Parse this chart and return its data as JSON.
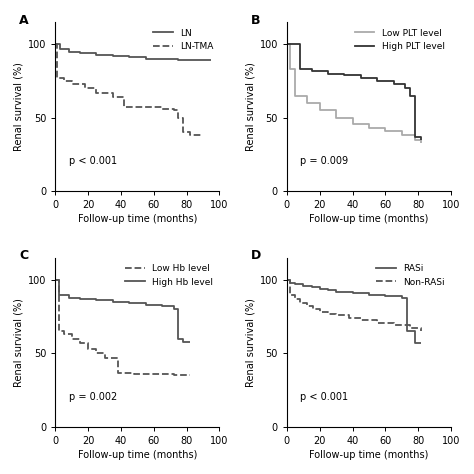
{
  "background_color": "#ffffff",
  "panel_A": {
    "label": "A",
    "curves": [
      {
        "name": "LN",
        "style": "solid",
        "color": "#555555",
        "linewidth": 1.3,
        "x": [
          0,
          3,
          8,
          15,
          25,
          35,
          45,
          55,
          65,
          75,
          85,
          95
        ],
        "y": [
          100,
          97,
          95,
          94,
          93,
          92,
          91,
          90,
          90,
          89,
          89,
          89
        ]
      },
      {
        "name": "LN-TMA",
        "style": "dashed",
        "color": "#555555",
        "linewidth": 1.3,
        "x": [
          0,
          1,
          5,
          10,
          18,
          25,
          35,
          42,
          55,
          65,
          72,
          75,
          78,
          82,
          90
        ],
        "y": [
          100,
          77,
          75,
          73,
          70,
          67,
          64,
          57,
          57,
          56,
          55,
          50,
          40,
          38,
          38
        ]
      }
    ],
    "pvalue": "p < 0.001",
    "pvalue_x": 0.08,
    "pvalue_y": 0.15,
    "xlabel": "Follow-up time (months)",
    "ylabel": "Renal survival (%)",
    "xlim": [
      0,
      100
    ],
    "ylim": [
      0,
      115
    ],
    "xticks": [
      0,
      20,
      40,
      60,
      80,
      100
    ],
    "yticks": [
      0,
      50,
      100
    ]
  },
  "panel_B": {
    "label": "B",
    "curves": [
      {
        "name": "Low PLT level",
        "style": "solid",
        "color": "#aaaaaa",
        "linewidth": 1.3,
        "x": [
          0,
          2,
          5,
          12,
          20,
          30,
          40,
          50,
          60,
          70,
          78,
          82
        ],
        "y": [
          100,
          83,
          65,
          60,
          55,
          50,
          46,
          43,
          41,
          38,
          35,
          33
        ]
      },
      {
        "name": "High PLT level",
        "style": "solid",
        "color": "#333333",
        "linewidth": 1.3,
        "x": [
          0,
          2,
          8,
          15,
          25,
          35,
          45,
          55,
          65,
          72,
          75,
          78,
          82
        ],
        "y": [
          100,
          100,
          83,
          82,
          80,
          79,
          77,
          75,
          73,
          70,
          65,
          37,
          35
        ]
      }
    ],
    "pvalue": "p = 0.009",
    "pvalue_x": 0.08,
    "pvalue_y": 0.15,
    "xlabel": "Follow-up time (months)",
    "ylabel": "Renal survival (%)",
    "xlim": [
      0,
      100
    ],
    "ylim": [
      0,
      115
    ],
    "xticks": [
      0,
      20,
      40,
      60,
      80,
      100
    ],
    "yticks": [
      0,
      50,
      100
    ]
  },
  "panel_C": {
    "label": "C",
    "curves": [
      {
        "name": "Low Hb level",
        "style": "dashed",
        "color": "#555555",
        "linewidth": 1.3,
        "x": [
          0,
          2,
          5,
          10,
          15,
          20,
          25,
          30,
          38,
          48,
          60,
          72,
          82
        ],
        "y": [
          100,
          65,
          63,
          60,
          57,
          53,
          50,
          47,
          37,
          36,
          36,
          35,
          35
        ]
      },
      {
        "name": "High Hb level",
        "style": "solid",
        "color": "#555555",
        "linewidth": 1.3,
        "x": [
          0,
          2,
          8,
          15,
          25,
          35,
          45,
          55,
          65,
          72,
          75,
          78,
          82
        ],
        "y": [
          100,
          90,
          88,
          87,
          86,
          85,
          84,
          83,
          82,
          80,
          60,
          58,
          58
        ]
      }
    ],
    "pvalue": "p = 0.002",
    "pvalue_x": 0.08,
    "pvalue_y": 0.15,
    "xlabel": "Follow-up time (months)",
    "ylabel": "Renal survival (%)",
    "xlim": [
      0,
      100
    ],
    "ylim": [
      0,
      115
    ],
    "xticks": [
      0,
      20,
      40,
      60,
      80,
      100
    ],
    "yticks": [
      0,
      50,
      100
    ]
  },
  "panel_D": {
    "label": "D",
    "curves": [
      {
        "name": "RASi",
        "style": "solid",
        "color": "#555555",
        "linewidth": 1.3,
        "x": [
          0,
          2,
          5,
          10,
          15,
          20,
          25,
          30,
          40,
          50,
          60,
          70,
          73,
          78,
          82
        ],
        "y": [
          100,
          98,
          97,
          96,
          95,
          94,
          93,
          92,
          91,
          90,
          89,
          88,
          65,
          57,
          57
        ]
      },
      {
        "name": "Non-RASi",
        "style": "dashed",
        "color": "#555555",
        "linewidth": 1.3,
        "x": [
          0,
          2,
          5,
          8,
          12,
          16,
          20,
          25,
          30,
          38,
          45,
          55,
          65,
          75,
          82
        ],
        "y": [
          100,
          90,
          87,
          84,
          82,
          80,
          78,
          77,
          76,
          74,
          73,
          71,
          69,
          67,
          65
        ]
      }
    ],
    "pvalue": "p < 0.001",
    "pvalue_x": 0.08,
    "pvalue_y": 0.15,
    "xlabel": "Follow-up time (months)",
    "ylabel": "Renal survival (%)",
    "xlim": [
      0,
      100
    ],
    "ylim": [
      0,
      115
    ],
    "xticks": [
      0,
      20,
      40,
      60,
      80,
      100
    ],
    "yticks": [
      0,
      50,
      100
    ]
  }
}
